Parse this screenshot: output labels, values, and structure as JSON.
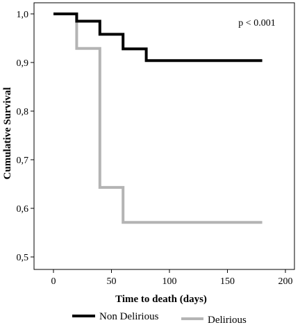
{
  "chart_data": {
    "type": "line",
    "step": true,
    "title": "",
    "xlabel": "Time to death (days)",
    "ylabel": "Cumulative Survival",
    "xlim": [
      0,
      200
    ],
    "ylim": [
      0.5,
      1.0
    ],
    "x_ticks": [
      0,
      50,
      100,
      150,
      200
    ],
    "x_tick_labels": [
      "0",
      "50",
      "100",
      "150",
      "200"
    ],
    "y_ticks": [
      0.5,
      0.6,
      0.7,
      0.8,
      0.9,
      1.0
    ],
    "y_tick_labels": [
      "0,5",
      "0,6",
      "0,7",
      "0,8",
      "0,9",
      "1,0"
    ],
    "grid": false,
    "legend_placement": "bottom",
    "annotation": "p < 0.001",
    "series": [
      {
        "name": "Non Delirious",
        "color": "#000000",
        "points": [
          [
            0,
            1.0
          ],
          [
            20,
            0.985
          ],
          [
            40,
            0.958
          ],
          [
            60,
            0.928
          ],
          [
            80,
            0.904
          ],
          [
            180,
            0.904
          ]
        ]
      },
      {
        "name": "Delirious",
        "color": "#b4b4b4",
        "points": [
          [
            0,
            1.0
          ],
          [
            20,
            0.929
          ],
          [
            40,
            0.643
          ],
          [
            60,
            0.571
          ],
          [
            180,
            0.571
          ]
        ]
      }
    ]
  }
}
